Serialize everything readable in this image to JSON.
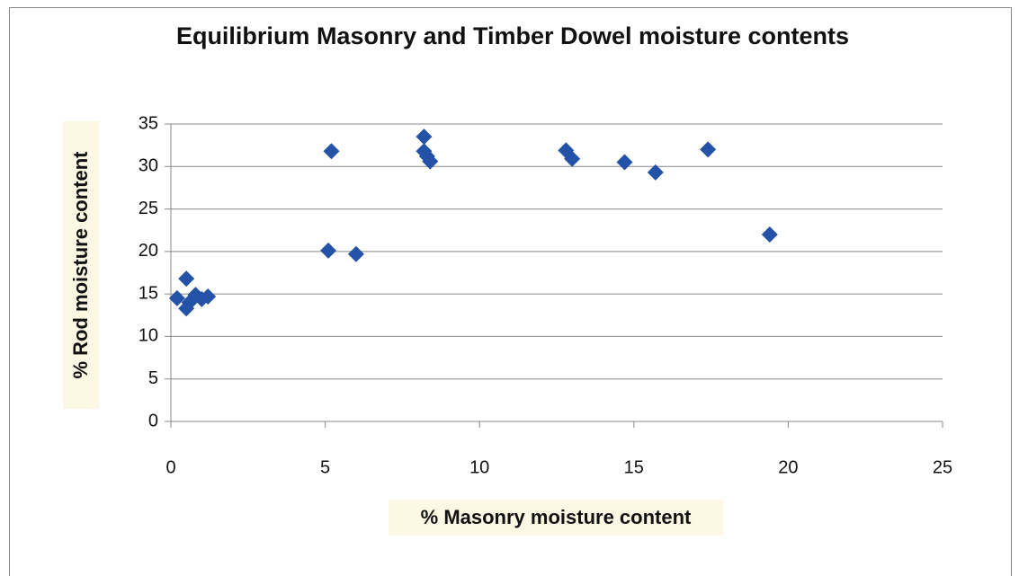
{
  "chart_data": {
    "type": "scatter",
    "title": "Equilibrium Masonry and Timber Dowel moisture contents",
    "x_label": "% Masonry moisture content",
    "y_label": "% Rod moisture content",
    "color": "#2352a6",
    "x": [
      0.2,
      0.5,
      0.5,
      0.6,
      0.8,
      1.0,
      1.2,
      5.1,
      5.2,
      6.0,
      8.2,
      8.2,
      8.3,
      8.4,
      12.8,
      13.0,
      14.7,
      15.7,
      17.4,
      19.4
    ],
    "values": [
      14.5,
      16.8,
      13.3,
      14.0,
      14.9,
      14.4,
      14.7,
      20.1,
      31.8,
      19.7,
      33.5,
      31.8,
      31.2,
      30.6,
      31.9,
      30.9,
      30.5,
      29.3,
      32.0,
      22.0
    ],
    "xlim": [
      0,
      25
    ],
    "xticks": [
      0,
      5,
      10,
      15,
      20,
      25
    ],
    "ylim": [
      0,
      35
    ],
    "yticks": [
      0,
      5,
      10,
      15,
      20,
      25,
      30,
      35
    ],
    "grid": true
  }
}
